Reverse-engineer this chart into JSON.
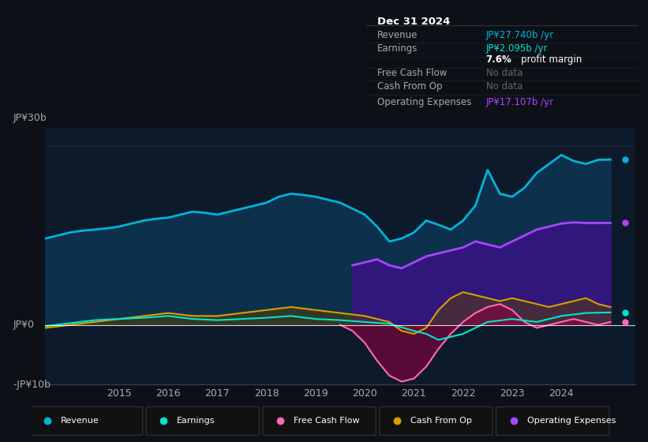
{
  "bg_color": "#0d1117",
  "chart_bg": "#0d1a2b",
  "ylim": [
    -10,
    33
  ],
  "ytick_labels": [
    "JP¥0",
    "JP¥30b"
  ],
  "ytick_neg_label": "-JP¥10b",
  "ytick_neg_val": -10,
  "xlim_start": 2013.5,
  "xlim_end": 2025.5,
  "xticks": [
    2015,
    2016,
    2017,
    2018,
    2019,
    2020,
    2021,
    2022,
    2023,
    2024
  ],
  "legend": [
    {
      "label": "Revenue",
      "color": "#00b4d8"
    },
    {
      "label": "Earnings",
      "color": "#00e5cc"
    },
    {
      "label": "Free Cash Flow",
      "color": "#ff69b4"
    },
    {
      "label": "Cash From Op",
      "color": "#d4a000"
    },
    {
      "label": "Operating Expenses",
      "color": "#aa44ff"
    }
  ],
  "series": {
    "revenue": {
      "x": [
        2013.5,
        2014,
        2014.25,
        2014.5,
        2014.75,
        2015,
        2015.25,
        2015.5,
        2015.75,
        2016,
        2016.25,
        2016.5,
        2016.75,
        2017,
        2017.25,
        2017.5,
        2017.75,
        2018,
        2018.25,
        2018.5,
        2018.75,
        2019,
        2019.25,
        2019.5,
        2019.75,
        2020,
        2020.25,
        2020.5,
        2020.75,
        2021,
        2021.25,
        2021.5,
        2021.75,
        2022,
        2022.25,
        2022.5,
        2022.75,
        2023,
        2023.25,
        2023.5,
        2023.75,
        2024,
        2024.25,
        2024.5,
        2024.75,
        2025.0
      ],
      "y": [
        14.5,
        15.5,
        15.8,
        16.0,
        16.2,
        16.5,
        17.0,
        17.5,
        17.8,
        18.0,
        18.5,
        19.0,
        18.8,
        18.5,
        19.0,
        19.5,
        20.0,
        20.5,
        21.5,
        22.0,
        21.8,
        21.5,
        21.0,
        20.5,
        19.5,
        18.5,
        16.5,
        14.0,
        14.5,
        15.5,
        17.5,
        16.8,
        16.0,
        17.5,
        20.0,
        26.0,
        22.0,
        21.5,
        23.0,
        25.5,
        27.0,
        28.5,
        27.5,
        27.0,
        27.7,
        27.74
      ],
      "color": "#00b4d8",
      "linewidth": 2.0,
      "fill_color": "#0d3a5c",
      "fill_alpha": 0.7
    },
    "earnings": {
      "x": [
        2013.5,
        2014,
        2014.5,
        2015,
        2015.5,
        2016,
        2016.5,
        2017,
        2017.5,
        2018,
        2018.5,
        2019,
        2019.5,
        2020,
        2020.5,
        2021,
        2021.25,
        2021.5,
        2022,
        2022.5,
        2023,
        2023.5,
        2024,
        2024.5,
        2025.0
      ],
      "y": [
        -0.2,
        0.3,
        0.8,
        1.0,
        1.2,
        1.5,
        1.0,
        0.8,
        1.0,
        1.2,
        1.5,
        1.0,
        0.8,
        0.5,
        0.2,
        -1.0,
        -1.5,
        -2.5,
        -1.5,
        0.5,
        1.0,
        0.5,
        1.5,
        2.0,
        2.095
      ],
      "color": "#00e5cc",
      "linewidth": 1.5
    },
    "free_cash_flow": {
      "x": [
        2019.5,
        2019.75,
        2020,
        2020.25,
        2020.5,
        2020.75,
        2021,
        2021.25,
        2021.5,
        2021.75,
        2022,
        2022.25,
        2022.5,
        2022.75,
        2023,
        2023.25,
        2023.5,
        2023.75,
        2024,
        2024.25,
        2024.5,
        2024.75,
        2025.0
      ],
      "y": [
        0.0,
        -1.0,
        -3.0,
        -6.0,
        -8.5,
        -9.5,
        -9.0,
        -7.0,
        -4.0,
        -1.5,
        0.5,
        2.0,
        3.0,
        3.5,
        2.5,
        0.5,
        -0.5,
        0.0,
        0.5,
        1.0,
        0.5,
        0.0,
        0.5
      ],
      "color": "#ff69b4",
      "linewidth": 1.5,
      "fill_color": "#8b0040",
      "fill_alpha": 0.6
    },
    "cash_from_op": {
      "x": [
        2013.5,
        2014,
        2014.5,
        2015,
        2015.5,
        2016,
        2016.5,
        2017,
        2017.5,
        2018,
        2018.5,
        2019,
        2019.5,
        2020,
        2020.5,
        2020.75,
        2021,
        2021.25,
        2021.5,
        2021.75,
        2022,
        2022.25,
        2022.5,
        2022.75,
        2023,
        2023.25,
        2023.5,
        2023.75,
        2024,
        2024.25,
        2024.5,
        2024.75,
        2025.0
      ],
      "y": [
        -0.5,
        0.0,
        0.5,
        1.0,
        1.5,
        2.0,
        1.5,
        1.5,
        2.0,
        2.5,
        3.0,
        2.5,
        2.0,
        1.5,
        0.5,
        -1.0,
        -1.5,
        -0.5,
        2.5,
        4.5,
        5.5,
        5.0,
        4.5,
        4.0,
        4.5,
        4.0,
        3.5,
        3.0,
        3.5,
        4.0,
        4.5,
        3.5,
        3.0
      ],
      "color": "#d4a000",
      "linewidth": 1.5,
      "fill_color": "#5a4000",
      "fill_alpha": 0.5
    },
    "op_expenses": {
      "x": [
        2019.75,
        2020,
        2020.25,
        2020.5,
        2020.75,
        2021,
        2021.25,
        2021.5,
        2021.75,
        2022,
        2022.25,
        2022.5,
        2022.75,
        2023,
        2023.25,
        2023.5,
        2023.75,
        2024,
        2024.25,
        2024.5,
        2024.75,
        2025.0
      ],
      "y": [
        10.0,
        10.5,
        11.0,
        10.0,
        9.5,
        10.5,
        11.5,
        12.0,
        12.5,
        13.0,
        14.0,
        13.5,
        13.0,
        14.0,
        15.0,
        16.0,
        16.5,
        17.0,
        17.2,
        17.1,
        17.1,
        17.107
      ],
      "color": "#aa44ff",
      "linewidth": 2.0,
      "fill_color": "#5500aa",
      "fill_alpha": 0.5
    }
  }
}
